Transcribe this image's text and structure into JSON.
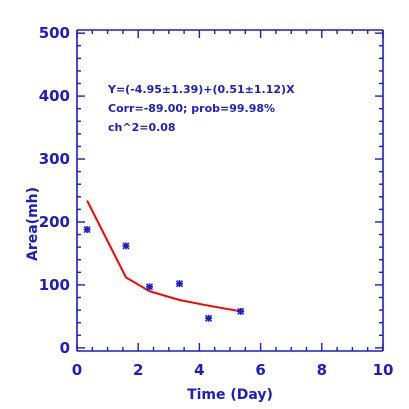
{
  "chart_data": {
    "type": "scatter",
    "title": "",
    "xlabel": "Time (Day)",
    "ylabel": "Area(mh)",
    "xlim": [
      0,
      10
    ],
    "ylim": [
      -5,
      505
    ],
    "xticks": [
      0,
      2,
      4,
      6,
      8,
      10
    ],
    "yticks": [
      0,
      100,
      200,
      300,
      400,
      500
    ],
    "grid": false,
    "series": [
      {
        "kind": "scatter",
        "marker": "asterisk",
        "color": "#1c1cc8",
        "x": [
          0.33,
          1.6,
          2.37,
          3.35,
          4.3,
          5.35
        ],
        "y": [
          188,
          162,
          97,
          102,
          47,
          58
        ]
      },
      {
        "kind": "line",
        "color": "#ff0000",
        "x": [
          0.33,
          1.6,
          2.37,
          3.35,
          4.3,
          5.35
        ],
        "y": [
          234,
          112,
          90,
          76,
          67,
          58
        ]
      }
    ],
    "annotations": [
      "Y=(-4.95±1.39)+(0.51±1.12)X",
      "Corr=-89.00;  prob=99.98%",
      "ch^2=0.08"
    ]
  },
  "colors": {
    "axis": "#1c1cc8",
    "fit_line": "#ff0000",
    "background": "#ffffff"
  }
}
